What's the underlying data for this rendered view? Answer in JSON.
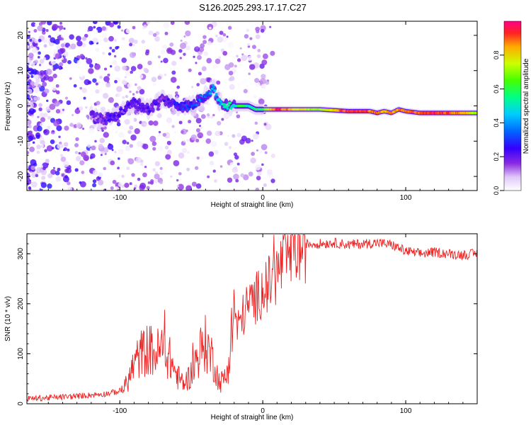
{
  "title": "S126.2025.293.17.17.C27",
  "colors": {
    "snr_line": "#ee2222",
    "axis": "#000000",
    "background": "#ffffff"
  },
  "chart_data": [
    {
      "type": "heatmap",
      "name": "spectrogram",
      "xlabel": "Height of straight line (km)",
      "ylabel": "Frequency (Hz)",
      "xlim": [
        -165,
        150
      ],
      "ylim": [
        -24,
        24
      ],
      "xticks": [
        -100,
        0,
        100
      ],
      "yticks": [
        -20,
        -10,
        0,
        10,
        20
      ],
      "colorbar": {
        "label": "Normalized spectral amplitude",
        "range": [
          0,
          1
        ],
        "ticks": [
          0.0,
          0.2,
          0.4,
          0.6,
          0.8
        ]
      },
      "ridge": {
        "x": [
          -120,
          -110,
          -100,
          -90,
          -80,
          -70,
          -60,
          -50,
          -40,
          -35,
          -30,
          -25,
          -20,
          -15,
          -10,
          -5,
          0,
          10,
          20,
          40,
          60,
          75,
          80,
          85,
          90,
          95,
          100,
          110,
          120,
          130,
          140,
          150
        ],
        "freq": [
          -3,
          -4,
          -2,
          1,
          -1,
          2,
          0,
          0,
          3,
          5,
          1,
          0,
          0,
          0,
          0,
          -1,
          -1,
          -1,
          -1,
          -1,
          -1.5,
          -1.5,
          -2,
          -1.5,
          -2,
          -1,
          -1.5,
          -2,
          -2,
          -2,
          -2,
          -2
        ],
        "amplitude": [
          0.15,
          0.2,
          0.2,
          0.2,
          0.2,
          0.2,
          0.25,
          0.3,
          0.35,
          0.4,
          0.45,
          0.5,
          0.5,
          0.6,
          0.5,
          0.55,
          0.6,
          0.95,
          0.8,
          0.7,
          0.95,
          0.9,
          0.9,
          0.8,
          0.9,
          0.85,
          0.9,
          0.9,
          0.95,
          0.9,
          0.85,
          0.7
        ]
      }
    },
    {
      "type": "line",
      "name": "snr",
      "xlabel": "Height of straight line (km)",
      "ylabel": "SNR (10 * v/v)",
      "xlim": [
        -165,
        150
      ],
      "ylim": [
        0,
        340
      ],
      "xticks": [
        -100,
        0,
        100
      ],
      "yticks": [
        0,
        100,
        200,
        300
      ],
      "x": [
        -165,
        -150,
        -130,
        -110,
        -100,
        -95,
        -90,
        -85,
        -80,
        -75,
        -70,
        -65,
        -60,
        -55,
        -50,
        -45,
        -40,
        -35,
        -30,
        -25,
        -22,
        -20,
        -18,
        -15,
        -10,
        -5,
        0,
        5,
        10,
        15,
        20,
        25,
        30,
        40,
        50,
        60,
        70,
        80,
        90,
        100,
        110,
        120,
        130,
        140,
        150
      ],
      "y": [
        10,
        12,
        15,
        20,
        25,
        40,
        80,
        100,
        110,
        100,
        110,
        90,
        55,
        40,
        60,
        100,
        120,
        90,
        40,
        60,
        130,
        200,
        150,
        170,
        200,
        210,
        230,
        240,
        260,
        290,
        305,
        315,
        320,
        320,
        322,
        318,
        320,
        322,
        318,
        305,
        300,
        303,
        300,
        298,
        300
      ],
      "series_name": "SNR"
    }
  ]
}
